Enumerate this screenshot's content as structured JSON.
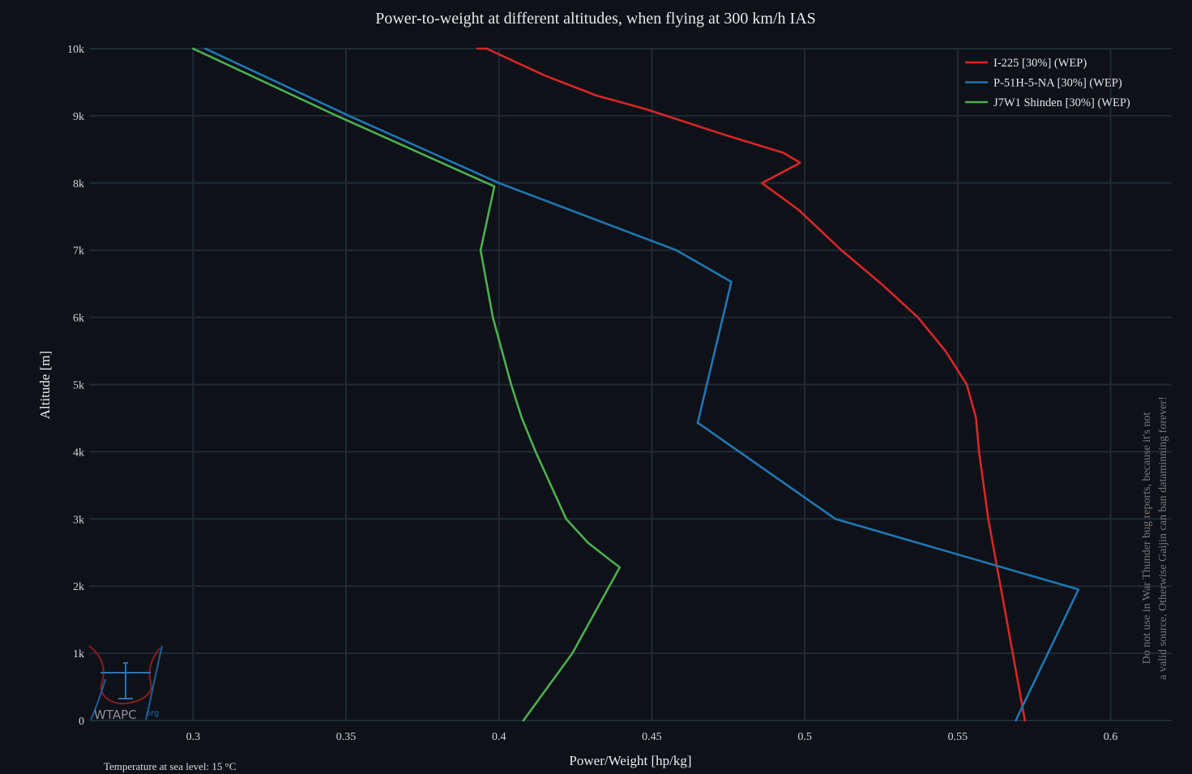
{
  "chart_data": {
    "type": "line",
    "title": "Power-to-weight at different altitudes, when flying at 300 km/h IAS",
    "xlabel": "Power/Weight [hp/kg]",
    "ylabel": "Altitude [m]",
    "xlim": [
      0.266,
      0.62
    ],
    "ylim": [
      0,
      10000
    ],
    "x_ticks": [
      0.3,
      0.35,
      0.4,
      0.45,
      0.5,
      0.55,
      0.6
    ],
    "x_tick_labels": [
      "0.3",
      "0.35",
      "0.4",
      "0.45",
      "0.5",
      "0.55",
      "0.6"
    ],
    "y_ticks": [
      0,
      1000,
      2000,
      3000,
      4000,
      5000,
      6000,
      7000,
      8000,
      9000,
      10000
    ],
    "y_tick_labels": [
      "0",
      "1k",
      "2k",
      "3k",
      "4k",
      "5k",
      "6k",
      "7k",
      "8k",
      "9k",
      "10k"
    ],
    "grid": true,
    "legend_position": "top-right",
    "series": [
      {
        "name": "I-225 [30%]  (WEP)",
        "color": "#d62728",
        "points": [
          [
            0.572,
            0
          ],
          [
            0.568,
            1000
          ],
          [
            0.564,
            2000
          ],
          [
            0.56,
            3000
          ],
          [
            0.557,
            4000
          ],
          [
            0.556,
            4500
          ],
          [
            0.553,
            5000
          ],
          [
            0.546,
            5500
          ],
          [
            0.537,
            6000
          ],
          [
            0.525,
            6500
          ],
          [
            0.512,
            7000
          ],
          [
            0.498,
            7600
          ],
          [
            0.486,
            8000
          ],
          [
            0.4985,
            8300
          ],
          [
            0.493,
            8450
          ],
          [
            0.475,
            8700
          ],
          [
            0.448,
            9100
          ],
          [
            0.432,
            9300
          ],
          [
            0.415,
            9600
          ],
          [
            0.396,
            10000
          ],
          [
            0.393,
            10000
          ]
        ]
      },
      {
        "name": "P-51H-5-NA [30%]  (WEP)",
        "color": "#1f77b4",
        "points": [
          [
            0.569,
            0
          ],
          [
            0.5895,
            1950
          ],
          [
            0.51,
            3000
          ],
          [
            0.466,
            4400
          ],
          [
            0.465,
            4430
          ],
          [
            0.476,
            6530
          ],
          [
            0.458,
            7000
          ],
          [
            0.4,
            8000
          ],
          [
            0.351,
            9000
          ],
          [
            0.304,
            10000
          ]
        ]
      },
      {
        "name": "J7W1 Shinden [30%]  (WEP)",
        "color": "#4caf50",
        "points": [
          [
            0.408,
            0
          ],
          [
            0.424,
            1000
          ],
          [
            0.4395,
            2280
          ],
          [
            0.436,
            2400
          ],
          [
            0.429,
            2650
          ],
          [
            0.422,
            3000
          ],
          [
            0.412,
            4000
          ],
          [
            0.4075,
            4500
          ],
          [
            0.404,
            5000
          ],
          [
            0.398,
            6000
          ],
          [
            0.394,
            7000
          ],
          [
            0.3985,
            7950
          ],
          [
            0.396,
            8000
          ],
          [
            0.347,
            9000
          ],
          [
            0.3,
            10000
          ]
        ]
      }
    ],
    "annotations": {
      "watermark_line1": "Do not use in War Thunder bug reports, because it's not",
      "watermark_line2": "a valid source. Otherwise Gaijin can ban dataminning forever!",
      "footnote": "Temperature at sea level: 15 °C",
      "logo_text": "WTAPC",
      "logo_suffix": "org"
    }
  }
}
